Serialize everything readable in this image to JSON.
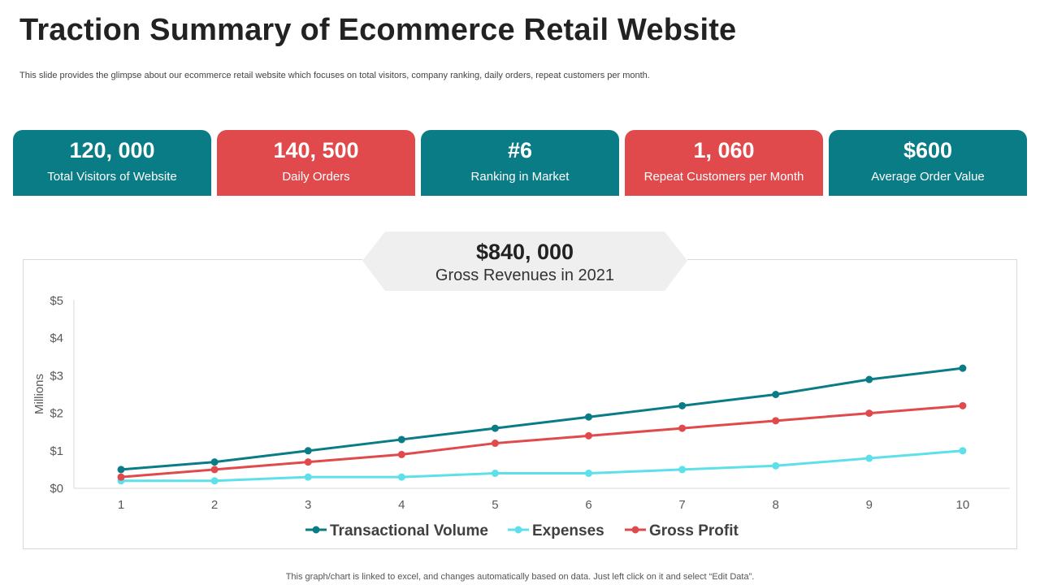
{
  "header": {
    "title": "Traction Summary of Ecommerce Retail Website",
    "subtitle": "This slide provides the glimpse about our ecommerce retail website which focuses on total visitors, company ranking, daily orders, repeat customers per month."
  },
  "colors": {
    "teal": "#0a7c86",
    "red": "#e04a4c",
    "cyan": "#5ee0ea",
    "banner": "#efefef"
  },
  "kpis": [
    {
      "value": "120, 000",
      "label": "Total Visitors of Website",
      "color": "#0a7c86"
    },
    {
      "value": "140, 500",
      "label": "Daily Orders",
      "color": "#e04a4c"
    },
    {
      "value": "#6",
      "label": "Ranking in Market",
      "color": "#0a7c86"
    },
    {
      "value": "1, 060",
      "label": "Repeat Customers per Month",
      "color": "#e04a4c"
    },
    {
      "value": "$600",
      "label": "Average Order Value",
      "color": "#0a7c86"
    }
  ],
  "banner": {
    "value": "$840, 000",
    "label": "Gross Revenues in 2021"
  },
  "chart_data": {
    "type": "line",
    "x": [
      1,
      2,
      3,
      4,
      5,
      6,
      7,
      8,
      9,
      10
    ],
    "ylabel": "Millions",
    "ylim": [
      0,
      5
    ],
    "yticks": [
      0,
      1,
      2,
      3,
      4,
      5
    ],
    "ytick_labels": [
      "$0",
      "$1",
      "$2",
      "$3",
      "$4",
      "$5"
    ],
    "grid": false,
    "legend_position": "bottom",
    "series": [
      {
        "name": "Transactional Volume",
        "color": "#0a7c86",
        "values": [
          0.5,
          0.7,
          1.0,
          1.3,
          1.6,
          1.9,
          2.2,
          2.5,
          2.9,
          3.2
        ]
      },
      {
        "name": "Expenses",
        "color": "#5ee0ea",
        "values": [
          0.2,
          0.2,
          0.3,
          0.3,
          0.4,
          0.4,
          0.5,
          0.6,
          0.8,
          1.0
        ]
      },
      {
        "name": "Gross Profit",
        "color": "#e04a4c",
        "values": [
          0.3,
          0.5,
          0.7,
          0.9,
          1.2,
          1.4,
          1.6,
          1.8,
          2.0,
          2.2
        ]
      }
    ]
  },
  "footer": {
    "note": "This graph/chart is linked to excel, and changes automatically based on data. Just left click on it and select “Edit Data”."
  }
}
